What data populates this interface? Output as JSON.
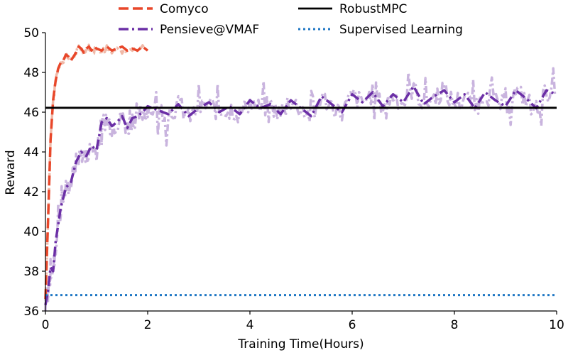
{
  "chart_data": {
    "type": "line",
    "title": "",
    "xlabel": "Training Time(Hours)",
    "ylabel": "Reward",
    "xlim": [
      0,
      10
    ],
    "ylim": [
      36,
      50
    ],
    "xticks": [
      0,
      2,
      4,
      6,
      8,
      10
    ],
    "yticks": [
      36,
      38,
      40,
      42,
      44,
      46,
      48,
      50
    ],
    "grid": false,
    "legend": {
      "position": "top",
      "columns": 2
    },
    "series": [
      {
        "name": "Comyco",
        "style": "dashed",
        "color": "#e8472a",
        "x": [
          0.0,
          0.05,
          0.1,
          0.15,
          0.2,
          0.25,
          0.3,
          0.35,
          0.4,
          0.45,
          0.5,
          0.55,
          0.6,
          0.65,
          0.7,
          0.75,
          0.8,
          0.85,
          0.9,
          0.95,
          1.0,
          1.1,
          1.2,
          1.3,
          1.4,
          1.5,
          1.6,
          1.7,
          1.8,
          1.9,
          2.0
        ],
        "y": [
          36.6,
          40.5,
          44.6,
          46.6,
          47.6,
          48.2,
          48.5,
          48.6,
          48.9,
          48.8,
          48.6,
          48.8,
          49.0,
          49.3,
          49.2,
          49.0,
          49.2,
          49.3,
          49.1,
          49.3,
          49.2,
          49.1,
          49.3,
          49.1,
          49.2,
          49.3,
          49.1,
          49.2,
          49.1,
          49.3,
          49.1
        ]
      },
      {
        "name": "Pensieve@VMAF",
        "style": "dashdot",
        "color": "#6b2fa6",
        "x": [
          0.0,
          0.05,
          0.1,
          0.15,
          0.2,
          0.3,
          0.4,
          0.5,
          0.6,
          0.7,
          0.8,
          0.9,
          1.0,
          1.1,
          1.2,
          1.3,
          1.4,
          1.5,
          1.6,
          1.7,
          1.8,
          1.9,
          2.0,
          2.2,
          2.4,
          2.6,
          2.8,
          3.0,
          3.2,
          3.4,
          3.6,
          3.8,
          4.0,
          4.2,
          4.4,
          4.6,
          4.8,
          5.0,
          5.2,
          5.4,
          5.6,
          5.8,
          6.0,
          6.2,
          6.4,
          6.6,
          6.8,
          7.0,
          7.2,
          7.4,
          7.6,
          7.8,
          8.0,
          8.2,
          8.4,
          8.6,
          8.8,
          9.0,
          9.2,
          9.4,
          9.6,
          9.8,
          10.0
        ],
        "y": [
          36.3,
          37.0,
          38.2,
          38.0,
          39.5,
          41.2,
          42.2,
          42.5,
          43.5,
          44.0,
          43.8,
          44.3,
          44.1,
          45.5,
          45.7,
          45.3,
          45.5,
          45.8,
          45.2,
          45.7,
          45.8,
          46.0,
          46.3,
          46.1,
          45.9,
          46.4,
          45.8,
          46.2,
          46.5,
          46.0,
          46.3,
          45.9,
          46.6,
          46.2,
          46.4,
          45.9,
          46.6,
          46.2,
          45.8,
          46.8,
          46.4,
          46.0,
          46.9,
          46.5,
          47.0,
          46.3,
          46.9,
          46.5,
          47.3,
          46.4,
          46.8,
          47.1,
          46.5,
          46.9,
          46.2,
          47.0,
          46.6,
          46.3,
          47.1,
          46.7,
          46.2,
          47.1,
          46.9
        ]
      },
      {
        "name": "RobustMPC",
        "style": "solid",
        "color": "#000000",
        "x": [
          0,
          10
        ],
        "y": [
          46.22,
          46.22
        ]
      },
      {
        "name": "Supervised Learning",
        "style": "dotted",
        "color": "#1f77c4",
        "x": [
          0,
          10
        ],
        "y": [
          36.8,
          36.8
        ]
      }
    ]
  }
}
